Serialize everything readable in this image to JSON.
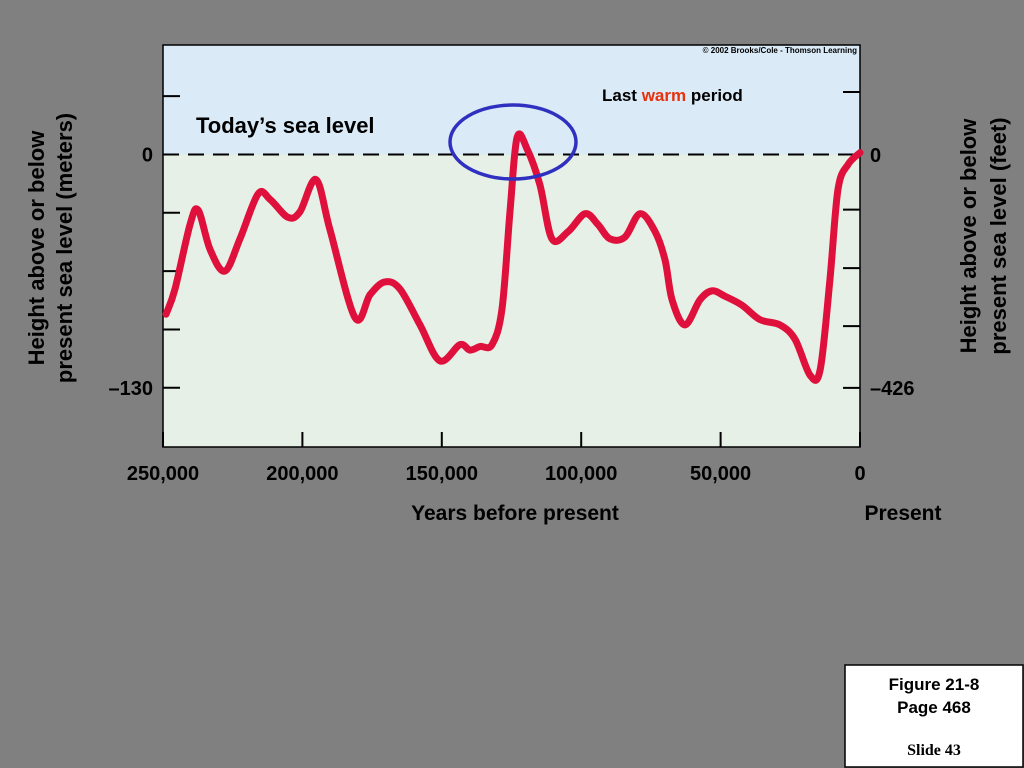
{
  "chart_data": {
    "type": "line",
    "copyright": "© 2002 Brooks/Cole - Thomson Learning",
    "annotations": {
      "today": "Today’s sea level",
      "last_warm_period": [
        "Last",
        "warm",
        "period"
      ]
    },
    "ylabel": [
      "Height above or below",
      "present sea level (meters)"
    ],
    "y2label": [
      "Height above or below",
      "present sea level (feet)"
    ],
    "xlabel": "Years before present",
    "xlabel_end": "Present",
    "xlim": [
      250000,
      0
    ],
    "xticks": [
      {
        "value": 250000,
        "label": "250,000"
      },
      {
        "value": 200000,
        "label": "200,000"
      },
      {
        "value": 150000,
        "label": "150,000"
      },
      {
        "value": 100000,
        "label": "100,000"
      },
      {
        "value": 50000,
        "label": "50,000"
      },
      0
    ],
    "ylim": [
      -163,
      61
    ],
    "yticks": [
      {
        "value": 32.5,
        "label": null
      },
      0,
      {
        "value": -32.5,
        "label": null
      },
      {
        "value": -65,
        "label": null
      },
      {
        "value": -97.5,
        "label": null
      },
      {
        "value": -130,
        "label": "–130"
      }
    ],
    "y2lim": [
      -534,
      201
    ],
    "y2ticks": [
      {
        "value": 115,
        "label": null
      },
      0,
      {
        "value": -100,
        "label": null
      },
      {
        "value": -207,
        "label": null
      },
      {
        "value": -313,
        "label": null
      },
      {
        "value": -426,
        "label": "–426"
      }
    ],
    "series": [
      {
        "color": "#e0103c",
        "x": [
          248900,
          245700,
          240300,
          237400,
          233100,
          227800,
          222400,
          215900,
          211600,
          205200,
          200900,
          195100,
          190100,
          181100,
          175700,
          170400,
          165000,
          157800,
          150700,
          143500,
          139900,
          136300,
          132000,
          128400,
          125500,
          123000,
          119400,
          114800,
          110500,
          104700,
          98600,
          94000,
          89700,
          84300,
          78900,
          73500,
          69900,
          67400,
          62800,
          57400,
          53100,
          48400,
          42300,
          35900,
          28700,
          23300,
          17900,
          14300,
          10800,
          7900,
          4300,
          0
        ],
        "values": [
          -89,
          -75,
          -39,
          -31,
          -53,
          -65,
          -47,
          -22,
          -25,
          -35,
          -32,
          -14,
          -42,
          -91,
          -78,
          -71,
          -75,
          -95,
          -115,
          -106,
          -109,
          -107,
          -106,
          -86,
          -31,
          9.5,
          3,
          -17,
          -47,
          -43,
          -33,
          -39,
          -47,
          -46,
          -33,
          -43,
          -59,
          -81,
          -95,
          -81,
          -76,
          -79,
          -84,
          -92,
          -95,
          -103,
          -123,
          -120,
          -70,
          -19.5,
          -5.6,
          1
        ]
      }
    ]
  },
  "caption": {
    "figure": "Figure 21-8",
    "page": "Page 468",
    "slide": "Slide 43"
  }
}
